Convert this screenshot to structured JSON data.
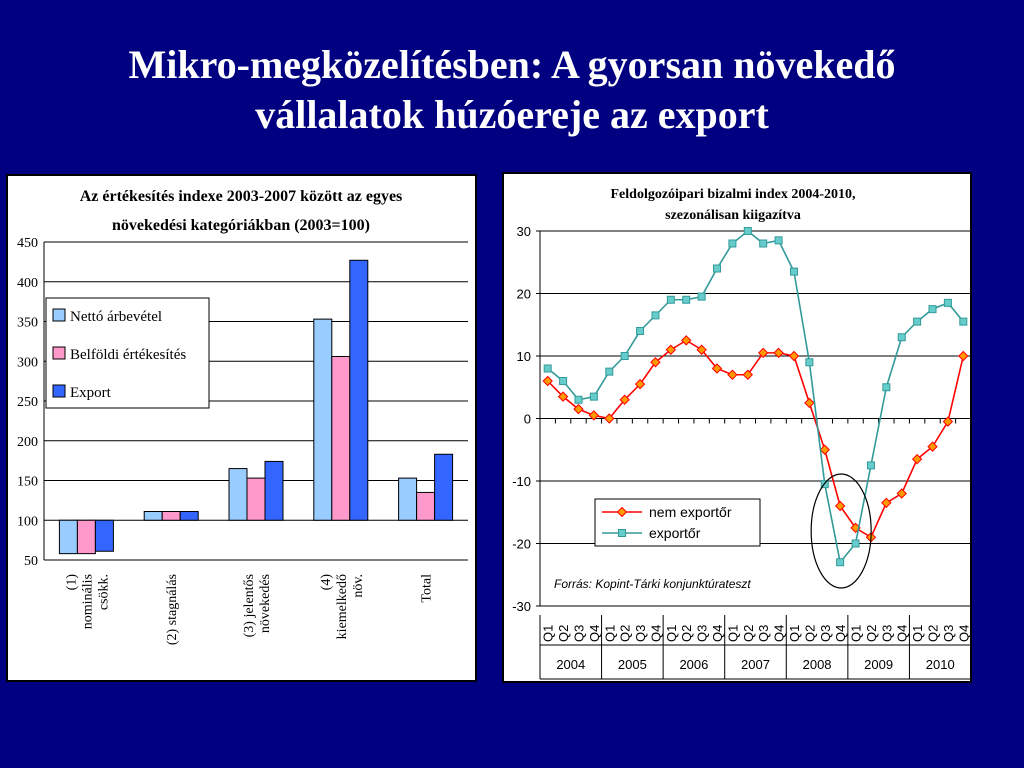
{
  "slide": {
    "title_line1": "Mikro-megközelítésben: A gyorsan növekedő",
    "title_line2": "vállalatok húzóereje az export"
  },
  "chart_data": [
    {
      "type": "bar",
      "title_line1": "Az értékesítés indexe 2003-2007 között az egyes",
      "title_line2": "növekedési kategóriákban (2003=100)",
      "categories": [
        [
          "(1)",
          "nominális",
          "csökk."
        ],
        [
          "(2) stagnálás"
        ],
        [
          "(3) jelentős",
          "növekedés"
        ],
        [
          "(4)",
          "kiemelkedő",
          "növ."
        ],
        [
          "Total"
        ]
      ],
      "ylim": [
        50,
        450
      ],
      "yticks": [
        50,
        100,
        150,
        200,
        250,
        300,
        350,
        400,
        450
      ],
      "baseline": 100,
      "grid": true,
      "legend_placement": "top-left",
      "series": [
        {
          "name": "Nettó árbevétel",
          "color": "#99CCFF",
          "values": [
            58,
            111,
            165,
            353,
            153
          ]
        },
        {
          "name": "Belföldi értékesítés",
          "color": "#FF99CC",
          "values": [
            58,
            111,
            153,
            306,
            135
          ]
        },
        {
          "name": "Export",
          "color": "#3366FF",
          "values": [
            61,
            111,
            174,
            427,
            183
          ]
        }
      ]
    },
    {
      "type": "line",
      "title_line1": "Feldolgozóipari bizalmi index 2004-2010,",
      "title_line2": "szezonálisan kiigazítva",
      "x": [
        "Q1",
        "Q2",
        "Q3",
        "Q4",
        "Q1",
        "Q2",
        "Q3",
        "Q4",
        "Q1",
        "Q2",
        "Q3",
        "Q4",
        "Q1",
        "Q2",
        "Q3",
        "Q4",
        "Q1",
        "Q2",
        "Q3",
        "Q4",
        "Q1",
        "Q2",
        "Q3",
        "Q4",
        "Q1",
        "Q2",
        "Q3",
        "Q4"
      ],
      "years": [
        "2004",
        "2005",
        "2006",
        "2007",
        "2008",
        "2009",
        "2010"
      ],
      "ylim": [
        -30,
        30
      ],
      "yticks": [
        -30,
        -20,
        -10,
        0,
        10,
        20,
        30
      ],
      "grid": true,
      "legend_placement": "bottom-center",
      "source_note": "Forrás: Kopint-Tárki konjunktúrateszt",
      "series": [
        {
          "name": "nem exportőr",
          "color": "#FF0000",
          "marker_color": "#FF9900",
          "marker": "diamond",
          "values": [
            6,
            3.5,
            1.5,
            0.5,
            0,
            3,
            5.5,
            9,
            11,
            12.5,
            11,
            8,
            7,
            7,
            10.5,
            10.5,
            10,
            2.5,
            -5,
            -14,
            -17.5,
            -19,
            -13.5,
            -12,
            -6.5,
            -4.5,
            -0.5,
            10
          ]
        },
        {
          "name": "exportőr",
          "color": "#339999",
          "marker_color": "#66CCCC",
          "marker": "square",
          "values": [
            8,
            6,
            3,
            3.5,
            7.5,
            10,
            14,
            16.5,
            19,
            19,
            19.5,
            24,
            28,
            30,
            28,
            28.5,
            23.5,
            9,
            -10.5,
            -23,
            -20,
            -7.5,
            5,
            13,
            15.5,
            17.5,
            18.5,
            15.5
          ]
        }
      ]
    }
  ]
}
